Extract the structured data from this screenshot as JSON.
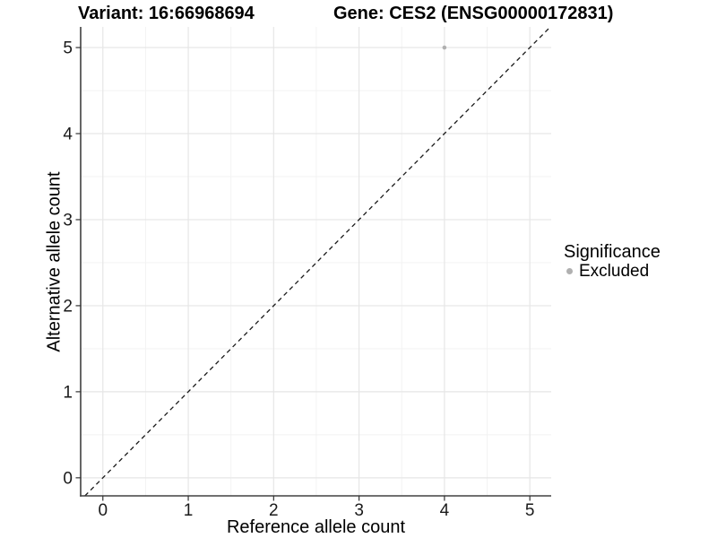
{
  "titles": {
    "variant": "Variant: 16:66968694",
    "gene": "Gene: CES2 (ENSG00000172831)"
  },
  "legend": {
    "title": "Significance",
    "items": [
      {
        "label": "Excluded",
        "color": "#B0B0B0"
      }
    ]
  },
  "chart_data": {
    "type": "scatter",
    "title": "",
    "xlabel": "Reference allele count",
    "ylabel": "Alternative allele count",
    "xlim": [
      -0.26,
      5.25
    ],
    "ylim": [
      -0.21,
      5.24
    ],
    "xticks": [
      0,
      1,
      2,
      3,
      4,
      5
    ],
    "yticks": [
      0,
      1,
      2,
      3,
      4,
      5
    ],
    "x_minor": [
      0.5,
      1.5,
      2.5,
      3.5,
      4.5
    ],
    "y_minor": [
      0.5,
      1.5,
      2.5,
      3.5,
      4.5
    ],
    "grid": true,
    "legend_position": "right",
    "series": [
      {
        "name": "Excluded",
        "color": "#B0B0B0",
        "points": [
          {
            "x": 4,
            "y": 5
          }
        ]
      }
    ],
    "reference_line": {
      "kind": "identity",
      "slope": 1,
      "intercept": 0,
      "style": "dashed",
      "color": "#1A1A1A"
    },
    "colors": {
      "grid_major": "#E6E6E6",
      "grid_minor": "#F2F2F2",
      "axis": "#404040",
      "tick": "#333333"
    }
  }
}
